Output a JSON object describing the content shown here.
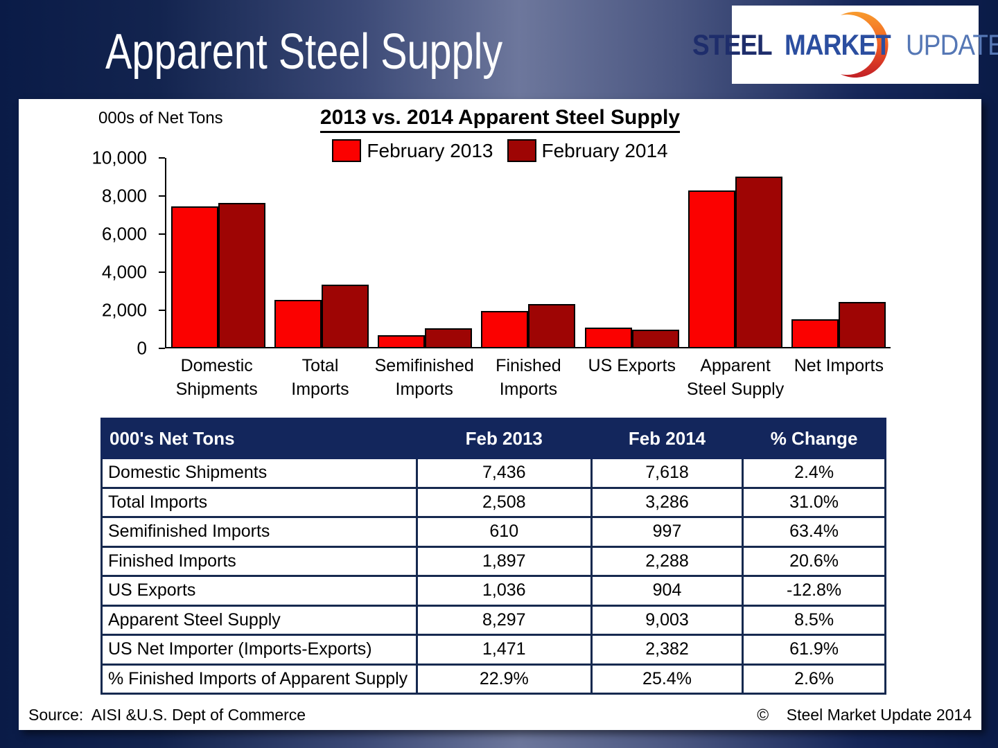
{
  "page": {
    "title": "Apparent Steel Supply"
  },
  "logo": {
    "steel": "STEEL",
    "market": "MARKET",
    "update": "UPDATE"
  },
  "chart": {
    "units_label": "000s of Net Tons"
  },
  "chart_data": {
    "type": "bar",
    "title": "2013 vs. 2014 Apparent Steel Supply",
    "categories": [
      "Domestic Shipments",
      "Total Imports",
      "Semifinished Imports",
      "Finished Imports",
      "US Exports",
      "Apparent Steel Supply",
      "Net Imports"
    ],
    "series": [
      {
        "name": "February 2013",
        "color": "#fb0100",
        "values": [
          7436,
          2508,
          610,
          1897,
          1036,
          8297,
          1471
        ]
      },
      {
        "name": "February 2014",
        "color": "#9e0504",
        "values": [
          7618,
          3286,
          997,
          2288,
          904,
          9003,
          2382
        ]
      }
    ],
    "xlabel": "",
    "ylabel": "000s of Net Tons",
    "ylim": [
      0,
      10000
    ],
    "yticks": [
      0,
      2000,
      4000,
      6000,
      8000,
      10000
    ],
    "ytick_labels": [
      "0",
      "2,000",
      "4,000",
      "6,000",
      "8,000",
      "10,000"
    ],
    "grid": false,
    "legend_position": "top-center"
  },
  "table": {
    "headers": [
      "000's Net Tons",
      "Feb 2013",
      "Feb 2014",
      "% Change"
    ],
    "col_widths": [
      "40.2%",
      "22.3%",
      "19.3%",
      "18.2%"
    ],
    "rows": [
      [
        "Domestic Shipments",
        "7,436",
        "7,618",
        "2.4%"
      ],
      [
        "Total Imports",
        "2,508",
        "3,286",
        "31.0%"
      ],
      [
        "Semifinished Imports",
        "610",
        "997",
        "63.4%"
      ],
      [
        "Finished Imports",
        "1,897",
        "2,288",
        "20.6%"
      ],
      [
        "US Exports",
        "1,036",
        "904",
        "-12.8%"
      ],
      [
        "Apparent Steel Supply",
        "8,297",
        "9,003",
        "8.5%"
      ],
      [
        "US Net Importer (Imports-Exports)",
        "1,471",
        "2,382",
        "61.9%"
      ],
      [
        "% Finished Imports of Apparent Supply",
        "22.9%",
        "25.4%",
        "2.6%"
      ]
    ]
  },
  "footer": {
    "source": "Source:  AISI &U.S. Dept of Commerce",
    "copyright": "©    Steel Market Update 2014"
  },
  "colors": {
    "series_2013": "#fb0100",
    "series_2014": "#9e0504",
    "table_header_bg": "#13265c",
    "table_border": "#16294f",
    "background_navy": "#0a1b47"
  }
}
